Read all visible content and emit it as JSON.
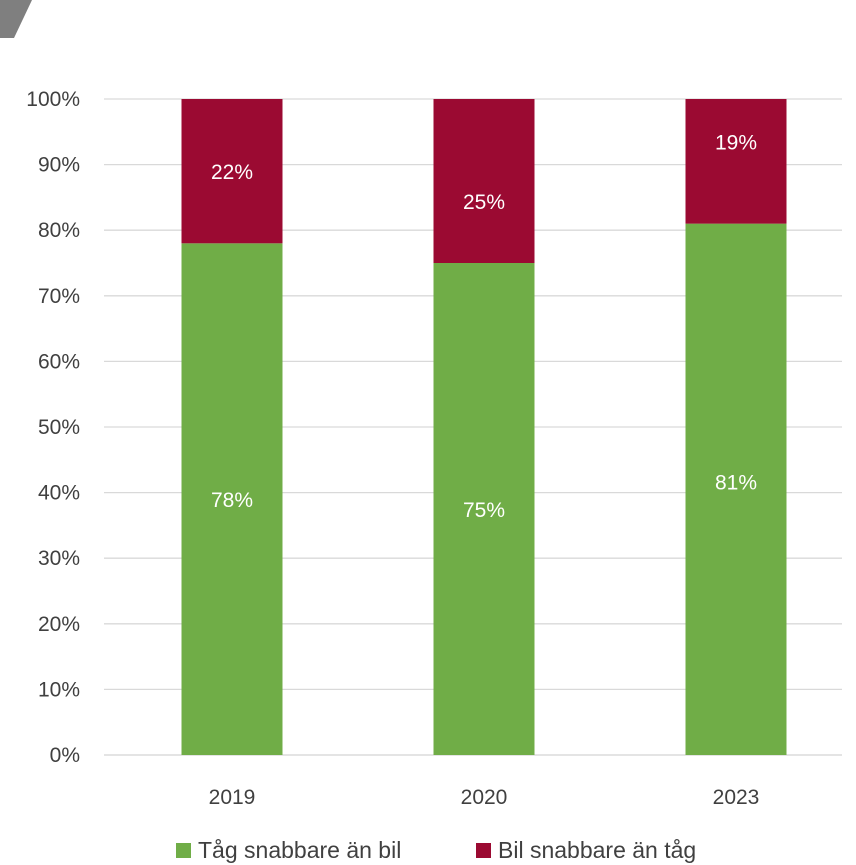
{
  "chart_data": {
    "type": "bar",
    "stacked": true,
    "categories": [
      "2019",
      "2020",
      "2023"
    ],
    "series": [
      {
        "name": "Tåg snabbare än bil",
        "values": [
          78,
          75,
          81
        ],
        "labels": [
          "78%",
          "75%",
          "81%"
        ],
        "color": "#70ad47"
      },
      {
        "name": "Bil snabbare än tåg",
        "values": [
          22,
          25,
          19
        ],
        "labels": [
          "22%",
          "25%",
          "19%"
        ],
        "color": "#9b0a32"
      }
    ],
    "ylim": [
      0,
      100
    ],
    "yticks": [
      "0%",
      "10%",
      "20%",
      "30%",
      "40%",
      "50%",
      "60%",
      "70%",
      "80%",
      "90%",
      "100%"
    ],
    "grid": true,
    "legend_position": "bottom",
    "title": "",
    "xlabel": "",
    "ylabel": ""
  }
}
